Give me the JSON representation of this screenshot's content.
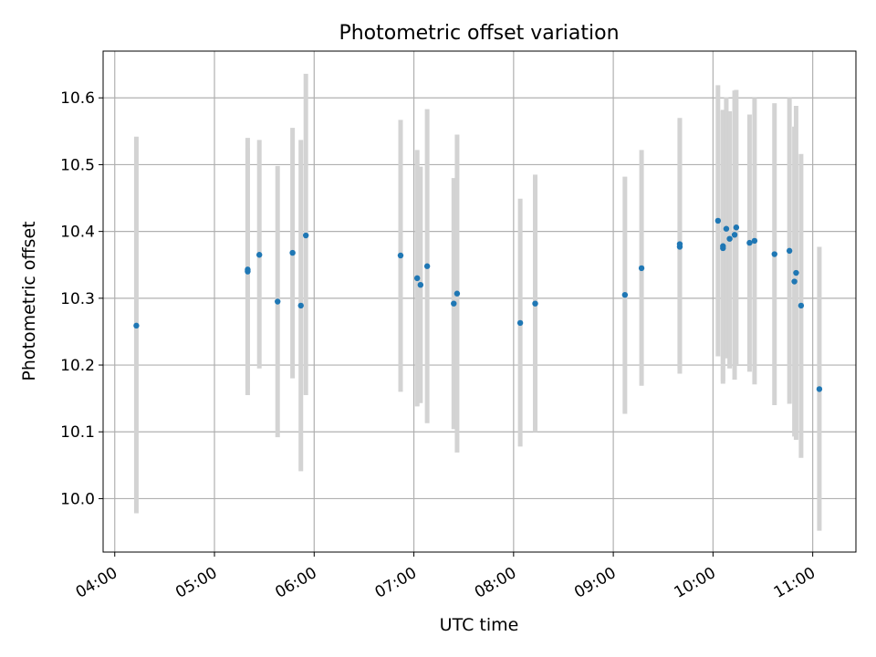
{
  "chart_data": {
    "type": "scatter",
    "title": "Photometric offset variation",
    "xlabel": "UTC time",
    "ylabel": "Photometric offset",
    "x_unit": "UTC time (HH:MM)",
    "xlim": [
      "03:53",
      "11:26"
    ],
    "ylim": [
      9.92,
      10.67
    ],
    "x_ticks": [
      "04:00",
      "05:00",
      "06:00",
      "07:00",
      "08:00",
      "09:00",
      "10:00",
      "11:00"
    ],
    "y_ticks": [
      10.0,
      10.1,
      10.2,
      10.3,
      10.4,
      10.5,
      10.6
    ],
    "y_tick_labels": [
      "10.0",
      "10.1",
      "10.2",
      "10.3",
      "10.4",
      "10.5",
      "10.6"
    ],
    "grid": true,
    "marker_color": "#1f77b4",
    "errorbar_color": "#d3d3d3",
    "points": [
      {
        "x": "04:13",
        "y": 10.259,
        "lo": 9.978,
        "hi": 10.542
      },
      {
        "x": "05:20",
        "y": 10.34,
        "lo": 10.155,
        "hi": 10.54
      },
      {
        "x": "05:20",
        "y": 10.343,
        "lo": 10.165,
        "hi": 10.525
      },
      {
        "x": "05:27",
        "y": 10.365,
        "lo": 10.195,
        "hi": 10.537
      },
      {
        "x": "05:38",
        "y": 10.295,
        "lo": 10.092,
        "hi": 10.498
      },
      {
        "x": "05:47",
        "y": 10.368,
        "lo": 10.18,
        "hi": 10.555
      },
      {
        "x": "05:52",
        "y": 10.289,
        "lo": 10.041,
        "hi": 10.537
      },
      {
        "x": "05:55",
        "y": 10.394,
        "lo": 10.155,
        "hi": 10.636
      },
      {
        "x": "06:52",
        "y": 10.364,
        "lo": 10.16,
        "hi": 10.567
      },
      {
        "x": "07:02",
        "y": 10.33,
        "lo": 10.138,
        "hi": 10.522
      },
      {
        "x": "07:04",
        "y": 10.32,
        "lo": 10.143,
        "hi": 10.497
      },
      {
        "x": "07:08",
        "y": 10.348,
        "lo": 10.113,
        "hi": 10.583
      },
      {
        "x": "07:24",
        "y": 10.292,
        "lo": 10.104,
        "hi": 10.48
      },
      {
        "x": "07:26",
        "y": 10.307,
        "lo": 10.069,
        "hi": 10.545
      },
      {
        "x": "08:04",
        "y": 10.263,
        "lo": 10.078,
        "hi": 10.449
      },
      {
        "x": "08:13",
        "y": 10.292,
        "lo": 10.1,
        "hi": 10.485
      },
      {
        "x": "09:07",
        "y": 10.305,
        "lo": 10.127,
        "hi": 10.482
      },
      {
        "x": "09:17",
        "y": 10.345,
        "lo": 10.169,
        "hi": 10.522
      },
      {
        "x": "09:40",
        "y": 10.377,
        "lo": 10.187,
        "hi": 10.567
      },
      {
        "x": "09:40",
        "y": 10.381,
        "lo": 10.195,
        "hi": 10.57
      },
      {
        "x": "10:03",
        "y": 10.416,
        "lo": 10.213,
        "hi": 10.619
      },
      {
        "x": "10:06",
        "y": 10.375,
        "lo": 10.172,
        "hi": 10.58
      },
      {
        "x": "10:06",
        "y": 10.378,
        "lo": 10.176,
        "hi": 10.582
      },
      {
        "x": "10:08",
        "y": 10.404,
        "lo": 10.21,
        "hi": 10.601
      },
      {
        "x": "10:10",
        "y": 10.389,
        "lo": 10.195,
        "hi": 10.58
      },
      {
        "x": "10:13",
        "y": 10.395,
        "lo": 10.178,
        "hi": 10.611
      },
      {
        "x": "10:14",
        "y": 10.406,
        "lo": 10.2,
        "hi": 10.612
      },
      {
        "x": "10:22",
        "y": 10.383,
        "lo": 10.19,
        "hi": 10.575
      },
      {
        "x": "10:25",
        "y": 10.386,
        "lo": 10.171,
        "hi": 10.6
      },
      {
        "x": "10:37",
        "y": 10.366,
        "lo": 10.14,
        "hi": 10.592
      },
      {
        "x": "10:46",
        "y": 10.371,
        "lo": 10.142,
        "hi": 10.6
      },
      {
        "x": "10:49",
        "y": 10.325,
        "lo": 10.093,
        "hi": 10.557
      },
      {
        "x": "10:50",
        "y": 10.338,
        "lo": 10.088,
        "hi": 10.588
      },
      {
        "x": "10:53",
        "y": 10.289,
        "lo": 10.061,
        "hi": 10.516
      },
      {
        "x": "11:04",
        "y": 10.164,
        "lo": 9.952,
        "hi": 10.377
      }
    ]
  }
}
